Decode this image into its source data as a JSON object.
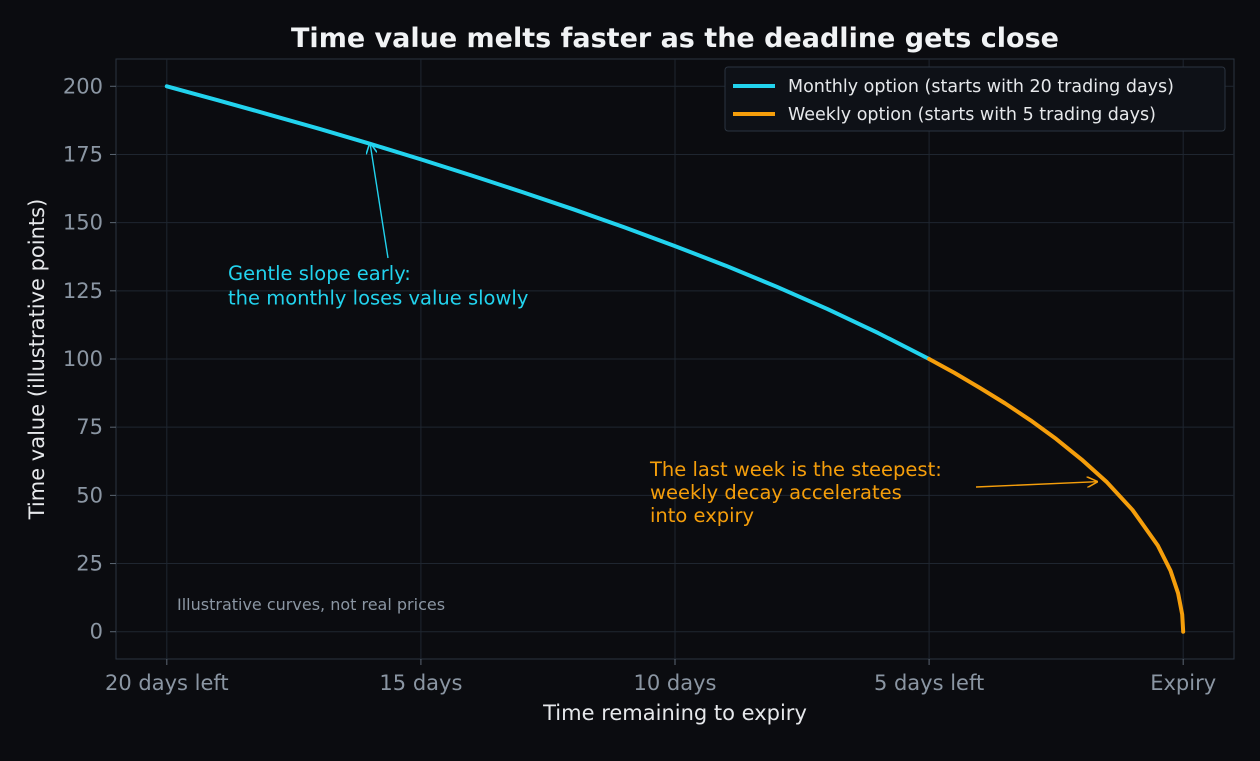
{
  "chart_data": {
    "type": "line",
    "title": "Time value melts faster as the deadline gets close",
    "xlabel": "Time remaining to expiry",
    "ylabel": "Time value (illustrative points)",
    "xlim": [
      21,
      -1
    ],
    "ylim": [
      -10,
      210
    ],
    "x_ticks": [
      {
        "value": 20,
        "label": "20 days left"
      },
      {
        "value": 15,
        "label": "15 days"
      },
      {
        "value": 10,
        "label": "10 days"
      },
      {
        "value": 5,
        "label": "5 days left"
      },
      {
        "value": 0,
        "label": "Expiry"
      }
    ],
    "y_ticks": [
      0,
      25,
      50,
      75,
      100,
      125,
      150,
      175,
      200
    ],
    "grid": true,
    "legend_position": "top-right",
    "series": [
      {
        "name": "Monthly option (starts with 20 trading days)",
        "color": "#22d3ee",
        "x": [
          20,
          19,
          18,
          17,
          16,
          15,
          14,
          13,
          12,
          11,
          10,
          9,
          8,
          7,
          6,
          5
        ],
        "y": [
          200,
          194.9,
          189.7,
          184.4,
          178.9,
          173.2,
          167.3,
          161.2,
          154.9,
          148.3,
          141.4,
          134.2,
          126.5,
          118.3,
          109.5,
          100
        ]
      },
      {
        "name": "Weekly option (starts with 5 trading days)",
        "color": "#f59e0b",
        "x": [
          5,
          4.5,
          4,
          3.5,
          3,
          2.5,
          2,
          1.5,
          1,
          0.5,
          0.25,
          0.1,
          0.02,
          0
        ],
        "y": [
          100,
          94.9,
          89.4,
          83.7,
          77.5,
          70.7,
          63.2,
          54.8,
          44.7,
          31.6,
          22.4,
          14.1,
          6.3,
          0
        ]
      }
    ],
    "annotations": [
      {
        "text_lines": [
          "Gentle slope early:",
          "the monthly loses value slowly"
        ],
        "color": "#22d3ee",
        "arrow_target": {
          "x": 16,
          "y": 179
        }
      },
      {
        "text_lines": [
          "The last week is the steepest:",
          "weekly decay accelerates",
          "into expiry"
        ],
        "color": "#f59e0b",
        "arrow_target": {
          "x": 1.7,
          "y": 55
        }
      }
    ],
    "footnote": "Illustrative curves, not real prices"
  }
}
